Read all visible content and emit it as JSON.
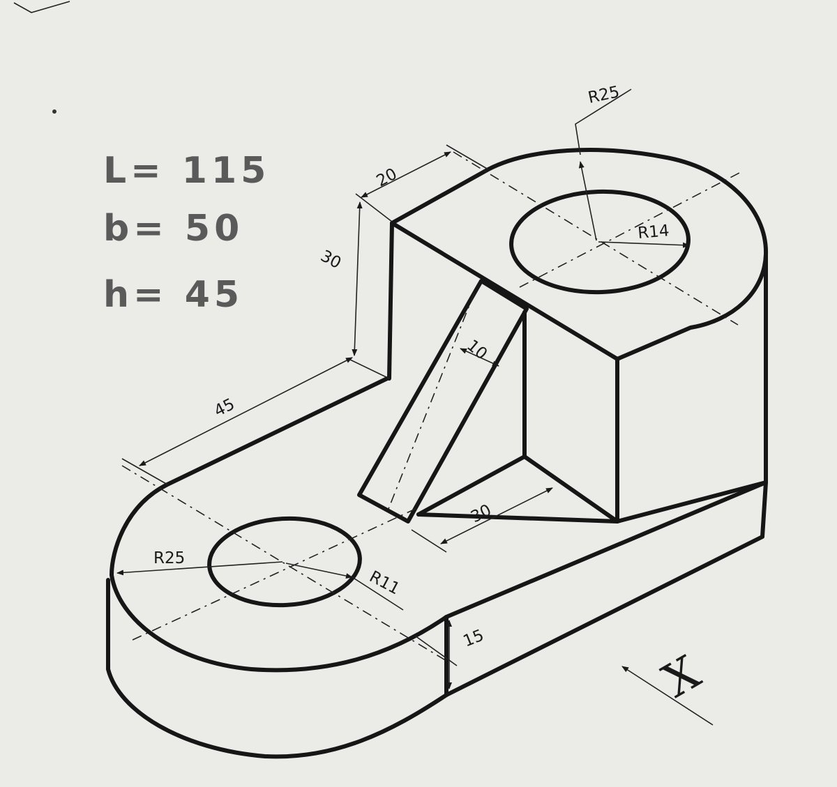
{
  "notes": {
    "length": "L= 115",
    "width": "b= 50",
    "height": "h= 45"
  },
  "dimensions": {
    "top_radius": "R25",
    "top_hole_radius": "R14",
    "upright_depth": "20",
    "upright_height": "30",
    "rib_thickness": "10",
    "base_span": "45",
    "rib_base": "30",
    "base_radius": "R25",
    "base_hole_radius": "R11",
    "base_thickness": "15"
  },
  "view_marker": "X"
}
